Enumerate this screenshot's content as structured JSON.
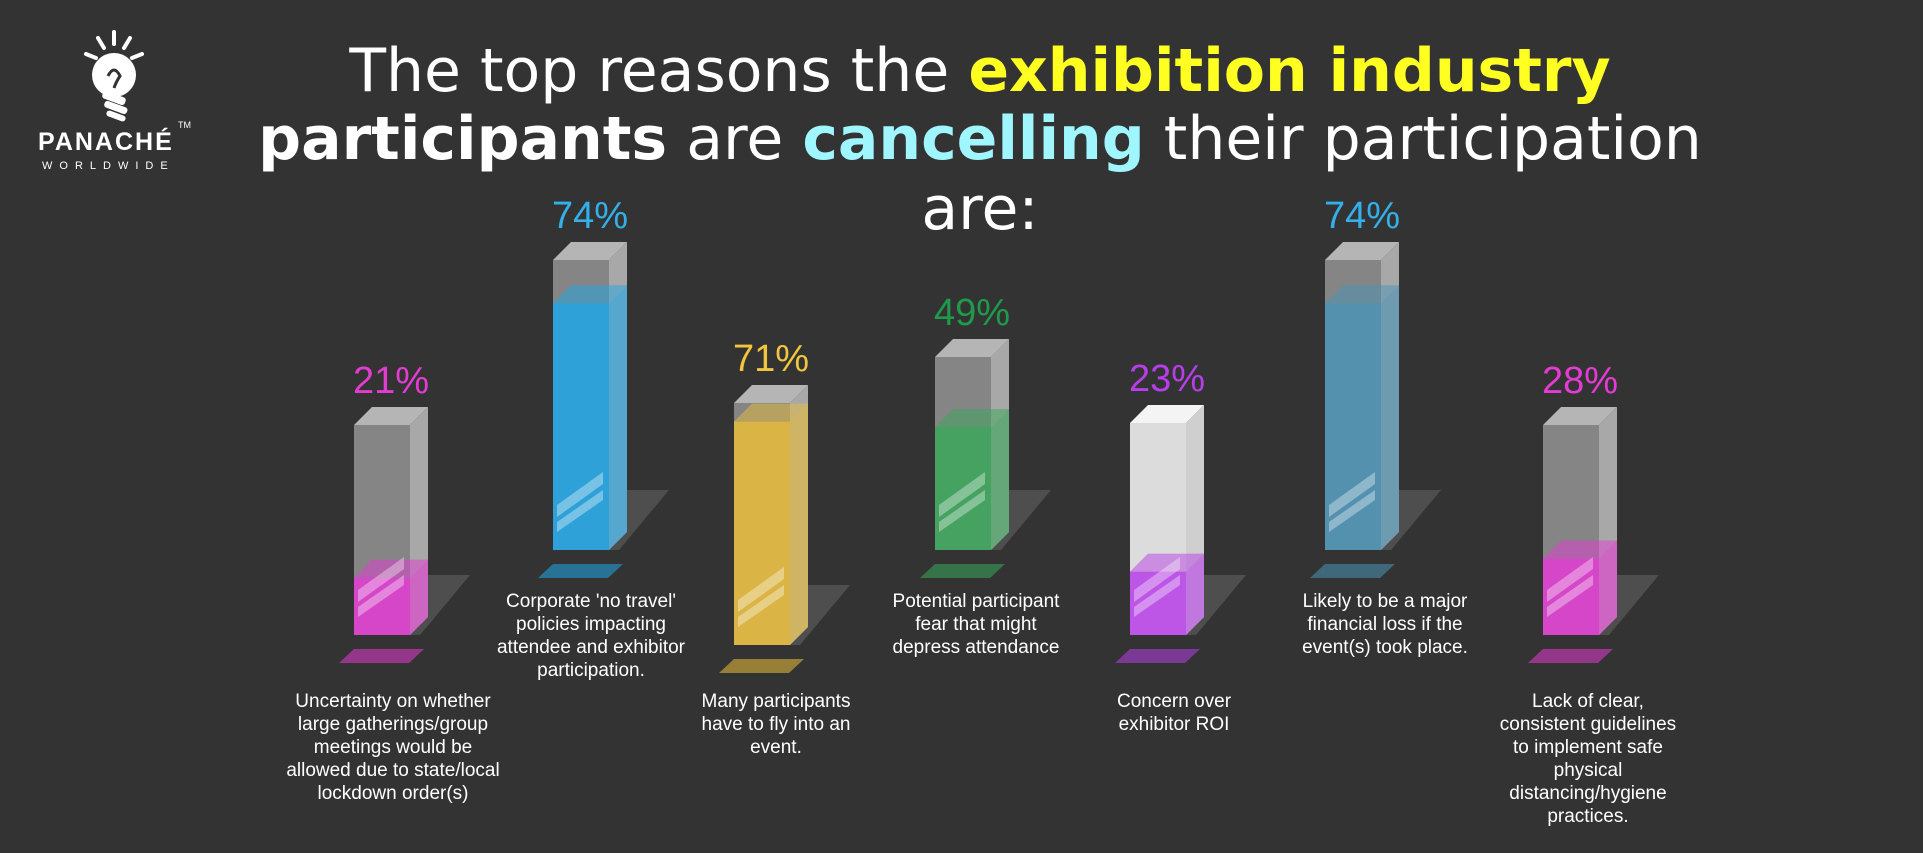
{
  "logo": {
    "brand": "PANACHÉ",
    "tagline": "WORLDWIDE",
    "tm": "TM"
  },
  "title": {
    "line1_a": "The top reasons the ",
    "line1_b": "exhibition industry",
    "line2_a": "participants",
    "line2_b": " are ",
    "line2_c": "cancelling",
    "line2_d": " their participation are:"
  },
  "colors": {
    "background": "#333333",
    "glass": "#8a8a8a",
    "pink": "#e43bd3",
    "blue": "#1fa7e6",
    "gold": "#e9bd3b",
    "green": "#1e9a4a",
    "purple": "#b73ee8",
    "steel": "#4a93b6"
  },
  "chart_data": {
    "type": "bar",
    "title": "The top reasons the exhibition industry participants are cancelling their participation are:",
    "xlabel": "",
    "ylabel": "",
    "ylim": [
      0,
      100
    ],
    "grid": false,
    "legend": "none",
    "categories": [
      "Uncertainty on whether large gatherings/group meetings would be allowed due to state/local lockdown order(s)",
      "Corporate 'no travel' policies impacting attendee and exhibitor participation.",
      "Many participants have to fly into an event.",
      "Potential participant fear that might depress attendance",
      "Concern over exhibitor ROI",
      "Likely to be a major financial loss if the event(s) took place.",
      "Lack of clear, consistent guidelines to implement safe physical distancing/hygiene practices."
    ],
    "values": [
      21,
      74,
      71,
      49,
      23,
      74,
      28
    ],
    "labels": [
      "21%",
      "74%",
      "71%",
      "49%",
      "23%",
      "74%",
      "28%"
    ],
    "caption_lines": [
      [
        "Uncertainty on whether",
        "large gatherings/group",
        "meetings would be",
        "allowed due to state/local",
        "lockdown order(s)"
      ],
      [
        "Corporate 'no travel'",
        "policies impacting",
        "attendee and exhibitor",
        "participation."
      ],
      [
        "Many participants",
        "have to fly into an",
        "event."
      ],
      [
        "Potential participant",
        "fear that might",
        "depress attendance"
      ],
      [
        "Concern over",
        "exhibitor ROI"
      ],
      [
        "Likely to be a major",
        "financial loss if the",
        "event(s) took place."
      ],
      [
        "Lack of clear,",
        "consistent guidelines",
        "to implement safe",
        "physical",
        "distancing/hygiene",
        "practices."
      ]
    ],
    "label_colors": [
      "#e43bd3",
      "#33b0ea",
      "#f1c53e",
      "#1e9a4a",
      "#b73ee8",
      "#33b0ea",
      "#e43bd3"
    ],
    "fill_colors": [
      "#e43bd3",
      "#1fa7e6",
      "#e9bd3b",
      "#3aa75a",
      "#b73ee8",
      "#4a93b6",
      "#e43bd3"
    ]
  }
}
